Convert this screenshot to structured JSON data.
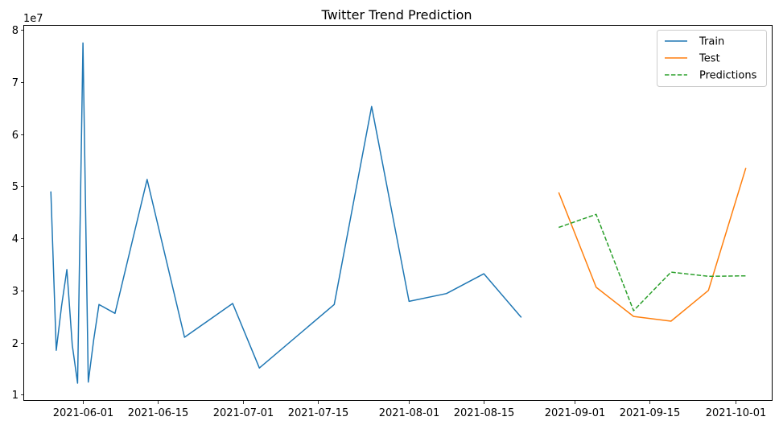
{
  "chart_data": {
    "type": "line",
    "title": "Twitter Trend Prediction",
    "xlabel": "",
    "ylabel": "",
    "y_offset_label": "1e7",
    "y_scale_factor": 10000000,
    "xlim": [
      "2021-05-21",
      "2021-10-08"
    ],
    "ylim": [
      8800000,
      80800000
    ],
    "x_ticks": [
      "2021-06-01",
      "2021-06-15",
      "2021-07-01",
      "2021-07-15",
      "2021-08-01",
      "2021-08-15",
      "2021-09-01",
      "2021-09-15",
      "2021-10-01"
    ],
    "y_ticks": [
      1,
      2,
      3,
      4,
      5,
      6,
      7,
      8
    ],
    "grid": false,
    "legend_position": "top-right",
    "series": [
      {
        "name": "Train",
        "color": "#1f77b4",
        "dash": "solid",
        "points": [
          [
            "2021-05-26",
            49000000
          ],
          [
            "2021-05-27",
            18500000
          ],
          [
            "2021-05-28",
            27000000
          ],
          [
            "2021-05-29",
            34000000
          ],
          [
            "2021-05-30",
            19500000
          ],
          [
            "2021-05-31",
            12200000
          ],
          [
            "2021-06-01",
            77500000
          ],
          [
            "2021-06-02",
            12400000
          ],
          [
            "2021-06-03",
            20500000
          ],
          [
            "2021-06-04",
            27300000
          ],
          [
            "2021-06-07",
            25600000
          ],
          [
            "2021-06-13",
            51300000
          ],
          [
            "2021-06-20",
            21000000
          ],
          [
            "2021-06-29",
            27500000
          ],
          [
            "2021-07-04",
            15100000
          ],
          [
            "2021-07-18",
            27300000
          ],
          [
            "2021-07-25",
            65300000
          ],
          [
            "2021-08-01",
            27900000
          ],
          [
            "2021-08-08",
            29400000
          ],
          [
            "2021-08-15",
            33200000
          ],
          [
            "2021-08-22",
            24800000
          ]
        ]
      },
      {
        "name": "Test",
        "color": "#ff7f0e",
        "dash": "solid",
        "points": [
          [
            "2021-08-29",
            48800000
          ],
          [
            "2021-09-05",
            30600000
          ],
          [
            "2021-09-12",
            25000000
          ],
          [
            "2021-09-19",
            24100000
          ],
          [
            "2021-09-26",
            30000000
          ],
          [
            "2021-10-03",
            53500000
          ]
        ]
      },
      {
        "name": "Predictions",
        "color": "#2ca02c",
        "dash": "dashed",
        "points": [
          [
            "2021-08-29",
            42100000
          ],
          [
            "2021-09-05",
            44600000
          ],
          [
            "2021-09-12",
            26100000
          ],
          [
            "2021-09-19",
            33500000
          ],
          [
            "2021-09-26",
            32700000
          ],
          [
            "2021-10-03",
            32800000
          ]
        ]
      }
    ]
  }
}
